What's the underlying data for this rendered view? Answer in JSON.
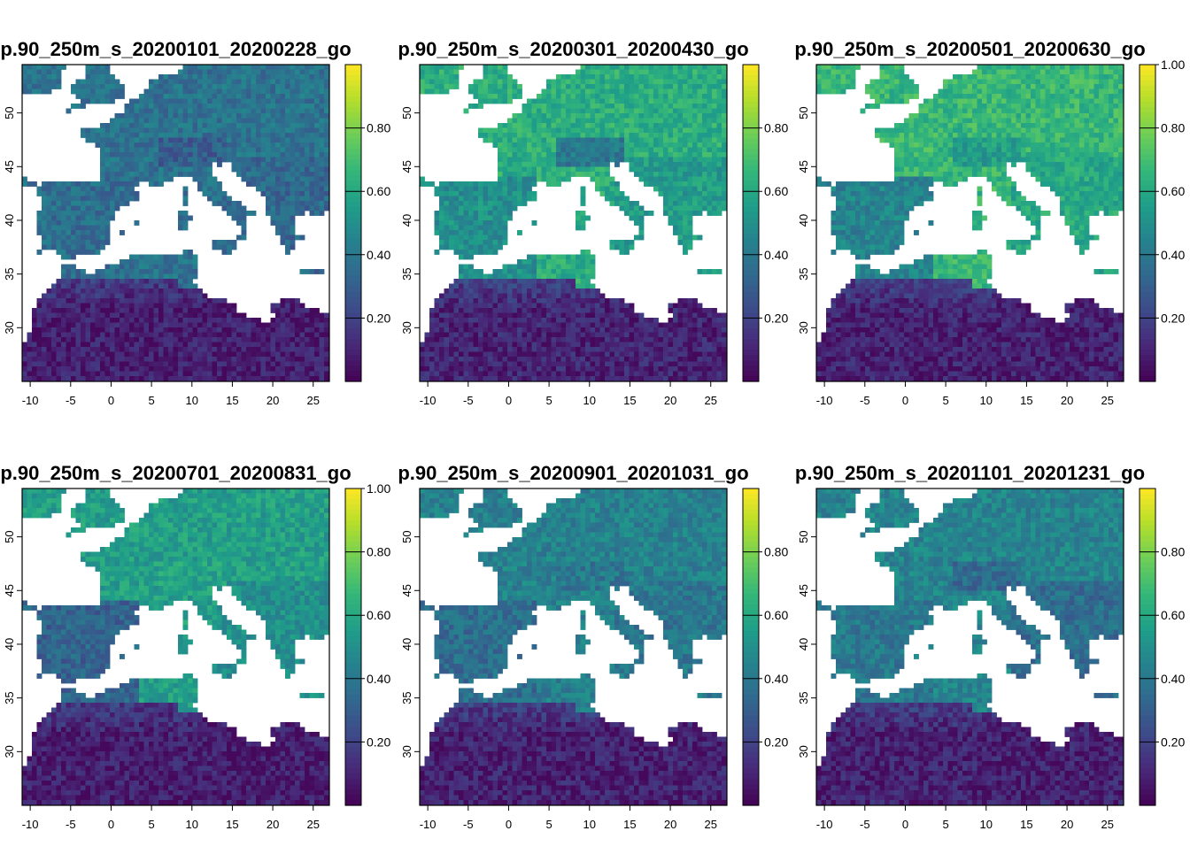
{
  "figure": {
    "x_ticks": [
      "-10",
      "-5",
      "0",
      "5",
      "10",
      "15",
      "20",
      "25"
    ],
    "y_ticks": [
      "30",
      "35",
      "40",
      "45",
      "50"
    ],
    "x_range": [
      -11,
      27
    ],
    "y_range": [
      25,
      54.5
    ],
    "palette": [
      "#440154",
      "#482878",
      "#3e4a89",
      "#31688e",
      "#26828e",
      "#1f9e89",
      "#35b779",
      "#6ece58",
      "#b5de2b",
      "#fde725"
    ],
    "sea_color": "#ffffff",
    "panels": [
      {
        "title": "p.90_250m_s_20200101_20200228_go",
        "colorbar": {
          "min": 0.0,
          "max": 1.0,
          "labels": [
            "0.20",
            "0.40",
            "0.60",
            "0.80"
          ],
          "values": [
            0.2,
            0.4,
            0.6,
            0.8
          ]
        },
        "greenness": {
          "north": 0.38,
          "iberia": 0.36,
          "alps": 0.3,
          "balkans": 0.34,
          "africa": 0.08
        }
      },
      {
        "title": "p.90_250m_s_20200301_20200430_go",
        "colorbar": {
          "min": 0.0,
          "max": 1.0,
          "labels": [
            "0.20",
            "0.40",
            "0.60",
            "0.80"
          ],
          "values": [
            0.2,
            0.4,
            0.6,
            0.8
          ]
        },
        "greenness": {
          "north": 0.62,
          "iberia": 0.5,
          "alps": 0.4,
          "balkans": 0.55,
          "africa": 0.1
        }
      },
      {
        "title": "p.90_250m_s_20200501_20200630_go",
        "colorbar": {
          "min": 0.0,
          "max": 1.0,
          "labels": [
            "0.20",
            "0.40",
            "0.60",
            "0.80",
            "1.00"
          ],
          "values": [
            0.2,
            0.4,
            0.6,
            0.8,
            1.0
          ]
        },
        "greenness": {
          "north": 0.66,
          "iberia": 0.45,
          "alps": 0.55,
          "balkans": 0.6,
          "africa": 0.09
        }
      },
      {
        "title": "p.90_250m_s_20200701_20200831_go",
        "colorbar": {
          "min": 0.0,
          "max": 1.0,
          "labels": [
            "0.20",
            "0.40",
            "0.60",
            "0.80",
            "1.00"
          ],
          "values": [
            0.2,
            0.4,
            0.6,
            0.8,
            1.0
          ]
        },
        "greenness": {
          "north": 0.56,
          "iberia": 0.32,
          "alps": 0.58,
          "balkans": 0.5,
          "africa": 0.08
        }
      },
      {
        "title": "p.90_250m_s_20200901_20201031_go",
        "colorbar": {
          "min": 0.0,
          "max": 1.0,
          "labels": [
            "0.20",
            "0.40",
            "0.60",
            "0.80"
          ],
          "values": [
            0.2,
            0.4,
            0.6,
            0.8
          ]
        },
        "greenness": {
          "north": 0.44,
          "iberia": 0.36,
          "alps": 0.4,
          "balkans": 0.4,
          "africa": 0.09
        }
      },
      {
        "title": "p.90_250m_s_20201101_20201231_go",
        "colorbar": {
          "min": 0.0,
          "max": 1.0,
          "labels": [
            "0.20",
            "0.40",
            "0.60",
            "0.80"
          ],
          "values": [
            0.2,
            0.4,
            0.6,
            0.8
          ]
        },
        "greenness": {
          "north": 0.45,
          "iberia": 0.4,
          "alps": 0.35,
          "balkans": 0.36,
          "africa": 0.09
        }
      }
    ],
    "land": {
      "europe": [
        [
          -11,
          44
        ],
        [
          -9,
          43.2
        ],
        [
          -8,
          43.7
        ],
        [
          -1.8,
          43.4
        ],
        [
          -1.3,
          45
        ],
        [
          -1.2,
          46.5
        ],
        [
          -2.5,
          47.3
        ],
        [
          -4.7,
          48.3
        ],
        [
          -1.6,
          48.7
        ],
        [
          1.5,
          50.1
        ],
        [
          1.6,
          51
        ],
        [
          3.5,
          51.4
        ],
        [
          4.5,
          52.5
        ],
        [
          5,
          53.3
        ],
        [
          8,
          53.6
        ],
        [
          9,
          54
        ],
        [
          8.6,
          54.6
        ],
        [
          27,
          54.6
        ],
        [
          27,
          42
        ],
        [
          28,
          41.3
        ],
        [
          26.3,
          40.6
        ],
        [
          24,
          40.7
        ],
        [
          23.5,
          40.2
        ],
        [
          22.6,
          40.4
        ],
        [
          22.8,
          39.2
        ],
        [
          23.2,
          38.2
        ],
        [
          22.1,
          37
        ],
        [
          21.6,
          36.9
        ],
        [
          21.2,
          37.7
        ],
        [
          20.2,
          39.3
        ],
        [
          19.4,
          40.4
        ],
        [
          19.4,
          41.8
        ],
        [
          17.4,
          43.1
        ],
        [
          15.7,
          44.3
        ],
        [
          14.8,
          45.1
        ],
        [
          13.7,
          45.7
        ],
        [
          13.5,
          45.1
        ],
        [
          12.3,
          45.3
        ],
        [
          12.2,
          44.5
        ],
        [
          13.6,
          43.5
        ],
        [
          14.5,
          42.2
        ],
        [
          16,
          41.8
        ],
        [
          18.5,
          40.1
        ],
        [
          17.9,
          40.5
        ],
        [
          16.6,
          40.1
        ],
        [
          17.1,
          39.0
        ],
        [
          16.6,
          38.4
        ],
        [
          16.1,
          38.0
        ],
        [
          15.6,
          38.2
        ],
        [
          16.2,
          39.4
        ],
        [
          15.4,
          40.1
        ],
        [
          14.2,
          40.8
        ],
        [
          12.5,
          41.6
        ],
        [
          11.2,
          42.5
        ],
        [
          10.5,
          43.5
        ],
        [
          9,
          44.4
        ],
        [
          7.6,
          43.8
        ],
        [
          6,
          43.1
        ],
        [
          4,
          43.5
        ],
        [
          3.1,
          43.2
        ],
        [
          3.2,
          42
        ],
        [
          0.8,
          41
        ],
        [
          0,
          39.8
        ],
        [
          -0.3,
          39.3
        ],
        [
          0.2,
          38.7
        ],
        [
          -0.7,
          37.6
        ],
        [
          -2.1,
          36.7
        ],
        [
          -4.5,
          36.7
        ],
        [
          -5.6,
          36
        ],
        [
          -6.3,
          36.8
        ],
        [
          -7.4,
          37.2
        ],
        [
          -8.9,
          37
        ],
        [
          -8.8,
          38.7
        ],
        [
          -9.5,
          39
        ],
        [
          -8.7,
          41.3
        ],
        [
          -8.9,
          42.2
        ],
        [
          -9.3,
          43
        ],
        [
          -11,
          43.2
        ]
      ],
      "britain": [
        [
          -5.7,
          50
        ],
        [
          -3.3,
          50.6
        ],
        [
          1.4,
          51.2
        ],
        [
          1.7,
          52.7
        ],
        [
          0.3,
          53.4
        ],
        [
          -0.2,
          54.6
        ],
        [
          -3.6,
          54.6
        ],
        [
          -3,
          53.4
        ],
        [
          -4.5,
          52.9
        ],
        [
          -5.2,
          51.7
        ],
        [
          -3.2,
          51.4
        ],
        [
          -5.4,
          50.4
        ]
      ],
      "ireland": [
        [
          -10.5,
          51.6
        ],
        [
          -6.2,
          52.2
        ],
        [
          -6,
          53.5
        ],
        [
          -5.8,
          54.6
        ],
        [
          -11,
          54.6
        ],
        [
          -11,
          52
        ]
      ],
      "africa": [
        [
          -11,
          27.5
        ],
        [
          -11,
          28.5
        ],
        [
          -9.8,
          29.9
        ],
        [
          -9.7,
          31.6
        ],
        [
          -8.4,
          33.3
        ],
        [
          -6.8,
          34.1
        ],
        [
          -6,
          35.8
        ],
        [
          -5.3,
          35.9
        ],
        [
          -2.5,
          35.1
        ],
        [
          0.1,
          35.9
        ],
        [
          3,
          36.8
        ],
        [
          6,
          37
        ],
        [
          8.5,
          37
        ],
        [
          9.9,
          37.3
        ],
        [
          10.4,
          36.6
        ],
        [
          11.1,
          36.9
        ],
        [
          10.6,
          35.9
        ],
        [
          11,
          35.1
        ],
        [
          10.2,
          34.3
        ],
        [
          11.1,
          33.4
        ],
        [
          12.2,
          32.9
        ],
        [
          15.4,
          32.3
        ],
        [
          15.8,
          31.5
        ],
        [
          17.8,
          30.9
        ],
        [
          19.4,
          30.3
        ],
        [
          20.1,
          31.0
        ],
        [
          19.9,
          32.2
        ],
        [
          21.6,
          32.9
        ],
        [
          23.1,
          32.6
        ],
        [
          25.0,
          31.7
        ],
        [
          27,
          31.4
        ],
        [
          27,
          25
        ],
        [
          -11,
          25
        ]
      ],
      "islands": [
        [
          [
            8.2,
            41
          ],
          [
            9.5,
            41.1
          ],
          [
            9.8,
            40.3
          ],
          [
            9.6,
            39.1
          ],
          [
            8.6,
            38.9
          ],
          [
            8.4,
            39.9
          ]
        ],
        [
          [
            8.6,
            42.9
          ],
          [
            9.4,
            43
          ],
          [
            9.5,
            42.3
          ],
          [
            9.2,
            41.4
          ],
          [
            8.8,
            41.6
          ]
        ],
        [
          [
            12.4,
            38.1
          ],
          [
            13.6,
            38.2
          ],
          [
            15.6,
            38.3
          ],
          [
            15.2,
            37.2
          ],
          [
            14.4,
            36.7
          ],
          [
            12.5,
            37.6
          ]
        ],
        [
          [
            2.4,
            39.5
          ],
          [
            3.2,
            39.9
          ],
          [
            3.4,
            39.3
          ],
          [
            2.7,
            39.4
          ]
        ],
        [
          [
            1.2,
            38.9
          ],
          [
            1.6,
            39.1
          ],
          [
            1.5,
            38.8
          ]
        ],
        [
          [
            23.5,
            35.5
          ],
          [
            24.2,
            35.6
          ],
          [
            26.3,
            35.2
          ],
          [
            25.0,
            34.9
          ],
          [
            23.5,
            35.2
          ]
        ],
        [
          [
            23.5,
            38.5
          ],
          [
            24.2,
            38.6
          ],
          [
            24.0,
            38.1
          ]
        ],
        [
          [
            26.0,
            39.5
          ],
          [
            26.5,
            39.2
          ],
          [
            26.2,
            39.0
          ]
        ],
        [
          [
            14.3,
            36.0
          ],
          [
            14.6,
            36.1
          ],
          [
            14.5,
            35.8
          ]
        ]
      ]
    }
  }
}
